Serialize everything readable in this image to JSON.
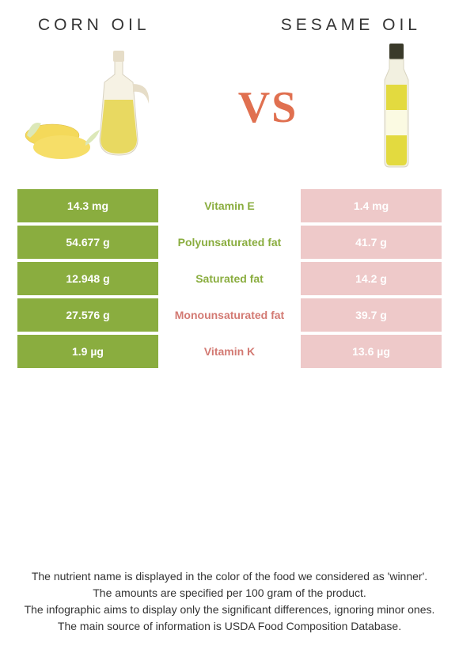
{
  "header": {
    "left_title": "CORN OIL",
    "right_title": "SESAME OIL"
  },
  "vs_label": "VS",
  "colors": {
    "left_bg": "#8aad3f",
    "right_bg": "#eec9c9",
    "mid_green": "#8aad3f",
    "mid_pink": "#d37a73",
    "vs_color": "#e07050"
  },
  "rows": [
    {
      "left": "14.3 mg",
      "mid": "Vitamin E",
      "right": "1.4 mg",
      "winner": "left"
    },
    {
      "left": "54.677 g",
      "mid": "Polyunsaturated fat",
      "right": "41.7 g",
      "winner": "left"
    },
    {
      "left": "12.948 g",
      "mid": "Saturated fat",
      "right": "14.2 g",
      "winner": "left"
    },
    {
      "left": "27.576 g",
      "mid": "Monounsaturated fat",
      "right": "39.7 g",
      "winner": "right"
    },
    {
      "left": "1.9 µg",
      "mid": "Vitamin K",
      "right": "13.6 µg",
      "winner": "right"
    }
  ],
  "footnotes": [
    "The nutrient name is displayed in the color of the food we considered as 'winner'.",
    "The amounts are specified per 100 gram of the product.",
    "The infographic aims to display only the significant differences, ignoring minor ones.",
    "The main source of information is USDA Food Composition Database."
  ]
}
